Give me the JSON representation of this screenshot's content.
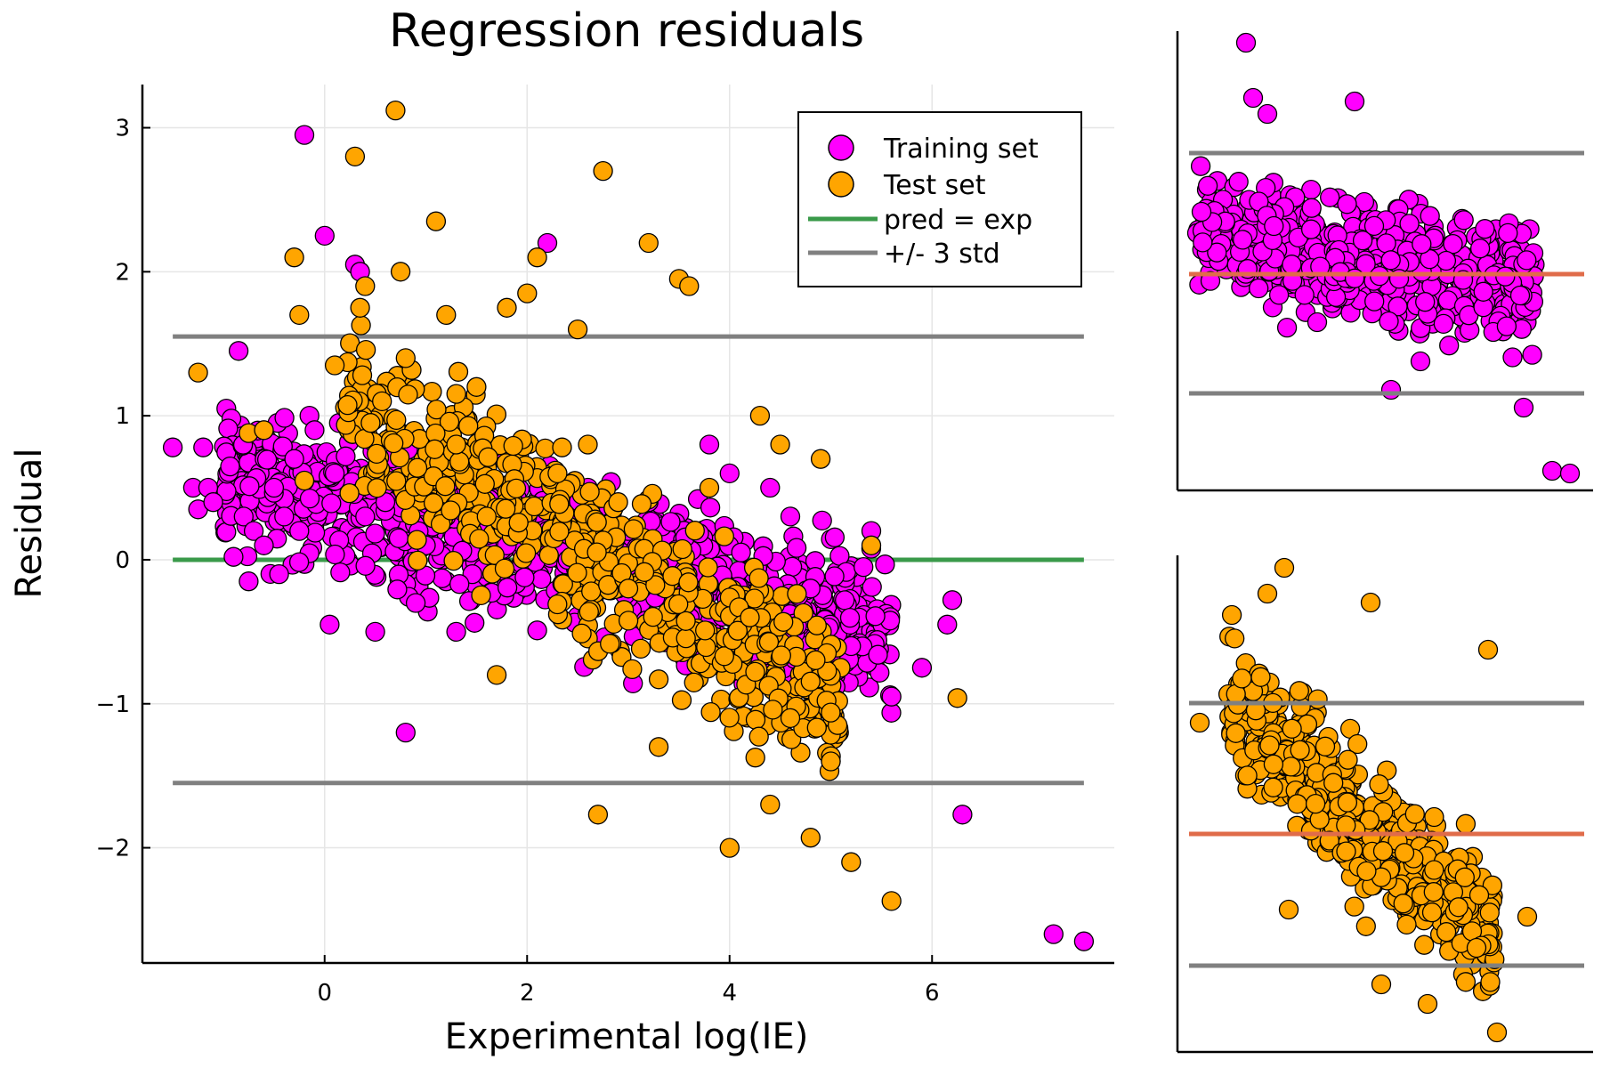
{
  "chart_data": [
    {
      "type": "scatter",
      "title": "Regression residuals",
      "xlabel": "Experimental log(IE)",
      "ylabel": "Residual",
      "xlim": [
        -1.8,
        7.8
      ],
      "ylim": [
        -2.8,
        3.3
      ],
      "xticks": [
        0,
        2,
        4,
        6
      ],
      "xtick_labels": [
        "0",
        "2",
        "4",
        "6"
      ],
      "yticks": [
        3,
        2,
        1,
        0,
        -1,
        -2
      ],
      "ytick_labels": [
        "3",
        "2",
        "1",
        "0",
        "−1",
        "−2"
      ],
      "grid": true,
      "legend_position": "top-right",
      "legend": [
        "Training set",
        "Test set",
        "pred = exp",
        "+/- 3 std"
      ],
      "colors": {
        "training": "#ff00ff",
        "test": "#ffa500",
        "pred_line": "#3a9a4a",
        "std_line": "#808080"
      },
      "series": [
        {
          "name": "Training set",
          "kind": "points",
          "x": [
            -1.5,
            -1.3,
            -1.25,
            -1.2,
            -1.15,
            -1.1,
            -0.9,
            -0.85,
            -0.8,
            -0.75,
            -0.7,
            -0.6,
            -0.5,
            -0.45,
            -0.4,
            -0.3,
            -0.25,
            -0.2,
            -0.15,
            -0.1,
            0.0,
            0.05,
            0.1,
            0.3,
            0.35,
            0.4,
            0.5,
            0.6,
            0.8,
            0.9,
            1.0,
            1.1,
            1.2,
            1.3,
            1.5,
            1.6,
            1.8,
            2.0,
            2.2,
            2.4,
            2.6,
            2.8,
            3.0,
            3.2,
            3.4,
            3.6,
            3.8,
            4.0,
            4.2,
            4.4,
            4.6,
            4.8,
            5.0,
            5.2,
            5.4,
            5.6,
            5.9,
            6.15,
            6.2,
            6.3,
            7.2,
            7.5
          ],
          "y": [
            0.78,
            0.5,
            0.35,
            0.78,
            0.5,
            0.4,
            0.02,
            1.45,
            0.3,
            -0.15,
            0.2,
            0.1,
            0.5,
            -0.1,
            0.3,
            0.7,
            0.2,
            2.95,
            1.0,
            0.9,
            2.25,
            -0.45,
            0.6,
            2.05,
            2.0,
            0.3,
            -0.5,
            0.4,
            -1.2,
            -0.3,
            0.1,
            0.6,
            0.3,
            -0.5,
            0.8,
            0.2,
            0.1,
            0.3,
            2.2,
            0.0,
            0.5,
            -0.2,
            0.2,
            0.4,
            0.0,
            -0.5,
            0.8,
            0.6,
            -0.7,
            0.5,
            0.3,
            -0.2,
            -1.4,
            -0.6,
            0.2,
            -0.95,
            -0.75,
            -0.45,
            -0.28,
            -1.77,
            -2.6,
            -2.65
          ]
        },
        {
          "name": "Test set",
          "kind": "points",
          "x": [
            -1.25,
            -0.75,
            -0.6,
            -0.3,
            -0.25,
            -0.2,
            0.1,
            0.3,
            0.35,
            0.4,
            0.7,
            0.75,
            0.8,
            1.1,
            1.2,
            1.3,
            1.5,
            1.6,
            1.7,
            1.8,
            2.0,
            2.1,
            2.3,
            2.5,
            2.6,
            2.7,
            2.75,
            2.9,
            3.0,
            3.2,
            3.3,
            3.5,
            3.6,
            3.8,
            4.0,
            4.2,
            4.3,
            4.4,
            4.5,
            4.6,
            4.8,
            4.9,
            5.0,
            5.2,
            5.4,
            5.6,
            6.25
          ],
          "y": [
            1.3,
            0.88,
            0.9,
            2.1,
            1.7,
            0.55,
            1.35,
            2.8,
            1.75,
            1.9,
            3.12,
            2.0,
            1.4,
            2.35,
            1.7,
            0.8,
            1.2,
            0.3,
            -0.8,
            1.75,
            1.85,
            2.1,
            0.6,
            1.6,
            0.8,
            -1.77,
            2.7,
            0.4,
            -0.2,
            2.2,
            -1.3,
            1.95,
            1.9,
            0.5,
            -2.0,
            -0.4,
            1.0,
            -1.7,
            0.8,
            -1.1,
            -1.93,
            0.7,
            -1.4,
            -2.1,
            0.1,
            -2.37,
            -0.96
          ]
        },
        {
          "name": "pred = exp",
          "kind": "hline",
          "y": 0
        },
        {
          "name": "+/- 3 std",
          "kind": "hline",
          "y": [
            1.55,
            -1.55
          ]
        }
      ]
    },
    {
      "type": "scatter",
      "series": [
        {
          "name": "Training set",
          "kind": "points"
        },
        {
          "kind": "hline",
          "color": "#e06c4a"
        },
        {
          "kind": "hline",
          "color": "#808080"
        }
      ]
    },
    {
      "type": "scatter",
      "series": [
        {
          "name": "Test set",
          "kind": "points"
        },
        {
          "kind": "hline",
          "color": "#e06c4a"
        },
        {
          "kind": "hline",
          "color": "#808080"
        }
      ]
    }
  ]
}
